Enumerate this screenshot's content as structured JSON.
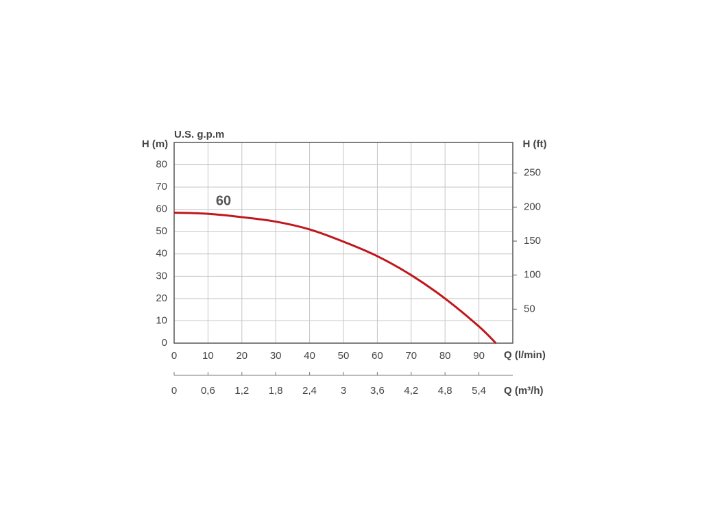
{
  "chart_data": {
    "type": "line",
    "y_label": "H (m)",
    "y2_label": "H (ft)",
    "top_label": "U.S. g.p.m",
    "x_label": "Q (l/min)",
    "x2_label": "Q (m³/h)",
    "x": [
      0,
      10,
      20,
      30,
      40,
      50,
      60,
      70,
      80,
      90,
      95
    ],
    "series": [
      {
        "name": "60",
        "color": "#c0161c",
        "values": [
          58.5,
          58,
          56.5,
          54.5,
          51,
          45.5,
          39,
          30.5,
          20,
          7.5,
          0
        ]
      }
    ],
    "xlim": [
      0,
      100
    ],
    "xticks": [
      0,
      10,
      20,
      30,
      40,
      50,
      60,
      70,
      80,
      90
    ],
    "ylim": [
      0,
      90
    ],
    "yticks": [
      0,
      10,
      20,
      30,
      40,
      50,
      60,
      70,
      80
    ],
    "y2lim": [
      0,
      295
    ],
    "y2ticks": [
      50,
      100,
      150,
      200,
      250
    ],
    "x2lim": [
      0,
      6
    ],
    "x2ticks": [
      0,
      {
        "value": 0.6,
        "label": "0,6"
      },
      {
        "value": 1.2,
        "label": "1,2"
      },
      {
        "value": 1.8,
        "label": "1,8"
      },
      {
        "value": 2.4,
        "label": "2,4"
      },
      3,
      {
        "value": 3.6,
        "label": "3,6"
      },
      {
        "value": 4.2,
        "label": "4,2"
      },
      {
        "value": 4.8,
        "label": "4,8"
      },
      {
        "value": 5.4,
        "label": "5,4"
      }
    ],
    "grid": true
  }
}
